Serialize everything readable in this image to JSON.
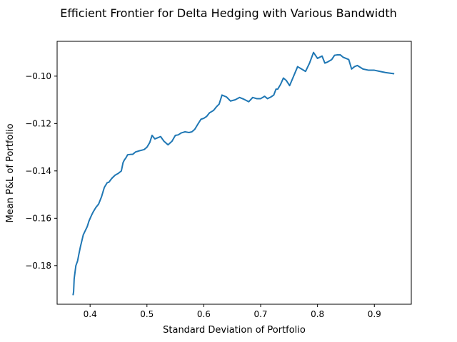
{
  "chart_data": {
    "type": "line",
    "title": "Efficient Frontier for Delta Hedging with Various Bandwidth",
    "xlabel": "Standard Deviation of Portfolio",
    "ylabel": "Mean P&L of Portfolio",
    "xlim": [
      0.342,
      0.965
    ],
    "ylim": [
      -0.1963,
      -0.0853
    ],
    "xticks": [
      0.4,
      0.5,
      0.6,
      0.7,
      0.8,
      0.9
    ],
    "xtick_labels": [
      "0.4",
      "0.5",
      "0.6",
      "0.7",
      "0.8",
      "0.9"
    ],
    "yticks": [
      -0.18,
      -0.16,
      -0.14,
      -0.12,
      -0.1
    ],
    "ytick_labels": [
      "−0.18",
      "−0.16",
      "−0.14",
      "−0.12",
      "−0.10"
    ],
    "grid": false,
    "legend": "none",
    "line_color": "#1f77b4",
    "series": [
      {
        "x": [
          0.37,
          0.371,
          0.372,
          0.375,
          0.378,
          0.38,
          0.383,
          0.386,
          0.388,
          0.392,
          0.395,
          0.398,
          0.402,
          0.405,
          0.41,
          0.415,
          0.42,
          0.425,
          0.43,
          0.433,
          0.438,
          0.441,
          0.444,
          0.45,
          0.455,
          0.458,
          0.46,
          0.463,
          0.466,
          0.472,
          0.475,
          0.48,
          0.487,
          0.495,
          0.5,
          0.505,
          0.509,
          0.514,
          0.519,
          0.524,
          0.53,
          0.537,
          0.544,
          0.55,
          0.555,
          0.56,
          0.567,
          0.574,
          0.579,
          0.584,
          0.589,
          0.595,
          0.6,
          0.605,
          0.61,
          0.617,
          0.622,
          0.627,
          0.632,
          0.64,
          0.647,
          0.655,
          0.663,
          0.671,
          0.679,
          0.686,
          0.693,
          0.7,
          0.707,
          0.712,
          0.718,
          0.723,
          0.727,
          0.73,
          0.735,
          0.74,
          0.745,
          0.751,
          0.758,
          0.765,
          0.772,
          0.779,
          0.786,
          0.793,
          0.8,
          0.808,
          0.813,
          0.818,
          0.825,
          0.83,
          0.835,
          0.84,
          0.845,
          0.85,
          0.855,
          0.86,
          0.865,
          0.87,
          0.88,
          0.89,
          0.9,
          0.91,
          0.92,
          0.935
        ],
        "y": [
          -0.1925,
          -0.191,
          -0.1855,
          -0.18,
          -0.178,
          -0.1755,
          -0.172,
          -0.169,
          -0.167,
          -0.165,
          -0.1635,
          -0.1612,
          -0.159,
          -0.1575,
          -0.1555,
          -0.154,
          -0.151,
          -0.147,
          -0.145,
          -0.1448,
          -0.1432,
          -0.1425,
          -0.1418,
          -0.141,
          -0.14,
          -0.1365,
          -0.1355,
          -0.1345,
          -0.1332,
          -0.133,
          -0.133,
          -0.132,
          -0.1315,
          -0.131,
          -0.13,
          -0.128,
          -0.125,
          -0.1265,
          -0.126,
          -0.1255,
          -0.1275,
          -0.129,
          -0.1275,
          -0.125,
          -0.1248,
          -0.124,
          -0.1235,
          -0.1238,
          -0.1235,
          -0.1225,
          -0.1205,
          -0.1182,
          -0.1178,
          -0.117,
          -0.1155,
          -0.1145,
          -0.113,
          -0.1118,
          -0.108,
          -0.1088,
          -0.1105,
          -0.11,
          -0.109,
          -0.1098,
          -0.1108,
          -0.109,
          -0.1095,
          -0.1095,
          -0.1085,
          -0.1095,
          -0.1088,
          -0.108,
          -0.1055,
          -0.1055,
          -0.1035,
          -0.1008,
          -0.1018,
          -0.104,
          -0.1,
          -0.096,
          -0.097,
          -0.098,
          -0.0945,
          -0.09,
          -0.0925,
          -0.0915,
          -0.0945,
          -0.094,
          -0.093,
          -0.0912,
          -0.091,
          -0.091,
          -0.092,
          -0.0925,
          -0.093,
          -0.097,
          -0.096,
          -0.0955,
          -0.097,
          -0.0975,
          -0.0975,
          -0.098,
          -0.0985,
          -0.099
        ]
      }
    ]
  }
}
